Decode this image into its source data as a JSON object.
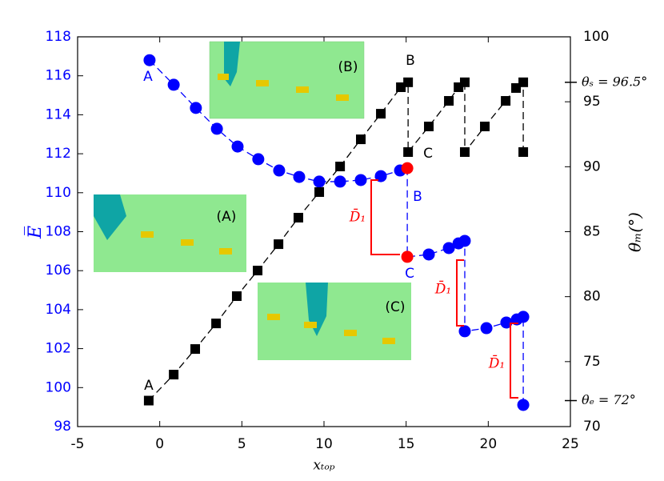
{
  "chart_data": {
    "type": "line",
    "xlabel": "xₜₒₚ",
    "ylabel": "E̅",
    "y2label": "θₘ(°)",
    "xlim": [
      -5,
      25
    ],
    "xticks": [
      -5,
      0,
      5,
      10,
      15,
      20,
      25
    ],
    "ylim": [
      98,
      118
    ],
    "yticks": [
      98,
      100,
      102,
      104,
      106,
      108,
      110,
      112,
      114,
      116,
      118
    ],
    "y2lim": [
      70,
      100
    ],
    "y2ticks": [
      70,
      75,
      80,
      85,
      90,
      95,
      100,
      {
        "value": 96.5,
        "label": "θₛ = 96.5°"
      },
      {
        "value": 72,
        "label": "θₑ = 72°"
      }
    ],
    "y_color": "#0000ff",
    "series": [
      {
        "axis": "y",
        "color": "#0000ff",
        "marker": "circle",
        "point_colors": [
          "#0000ff",
          "#0000ff",
          "#0000ff",
          "#0000ff",
          "#0000ff",
          "#0000ff",
          "#0000ff",
          "#0000ff",
          "#0000ff",
          "#0000ff",
          "#0000ff",
          "#0000ff",
          "#0000ff",
          "#ff0000",
          "#ff0000",
          "#0000ff",
          "#0000ff",
          "#0000ff",
          "#0000ff",
          "#0000ff",
          "#0000ff",
          "#0000ff",
          "#0000ff",
          "#0000ff",
          "#0000ff"
        ],
        "x": [
          -0.62,
          0.85,
          2.2,
          3.48,
          4.74,
          6.0,
          7.27,
          8.49,
          9.71,
          10.98,
          12.24,
          13.46,
          14.63,
          15.07,
          15.07,
          16.38,
          17.6,
          18.19,
          18.57,
          18.57,
          19.89,
          21.1,
          21.74,
          22.13,
          22.13
        ],
        "values": [
          116.8,
          115.54,
          114.35,
          113.28,
          112.37,
          111.72,
          111.14,
          110.81,
          110.57,
          110.57,
          110.65,
          110.85,
          111.14,
          111.26,
          106.71,
          106.83,
          107.16,
          107.4,
          107.53,
          102.89,
          103.05,
          103.34,
          103.5,
          103.63,
          99.11
        ]
      },
      {
        "axis": "y2",
        "color": "#000000",
        "marker": "square",
        "x": [
          -0.67,
          0.85,
          2.16,
          3.43,
          4.69,
          5.96,
          7.23,
          8.44,
          9.71,
          10.98,
          12.24,
          13.46,
          14.68,
          15.12,
          15.12,
          16.38,
          17.6,
          18.19,
          18.57,
          18.57,
          19.79,
          21.06,
          21.69,
          22.13,
          22.13
        ],
        "values": [
          72,
          74,
          75.97,
          77.94,
          80.04,
          82.01,
          84.04,
          86.08,
          88.05,
          90.02,
          92.11,
          94.08,
          96.12,
          96.5,
          91.13,
          93.1,
          95.07,
          96.12,
          96.5,
          91.13,
          93.1,
          95.07,
          96.06,
          96.5,
          91.13
        ]
      }
    ],
    "point_labels_y": [
      "A",
      "B",
      "C"
    ],
    "point_labels_y2": [
      "A",
      "B",
      "C"
    ],
    "inset_labels": [
      "(A)",
      "(B)",
      "(C)"
    ],
    "bracket_labels": [
      "D̄₁",
      "D̄₁",
      "D̄₁"
    ]
  }
}
